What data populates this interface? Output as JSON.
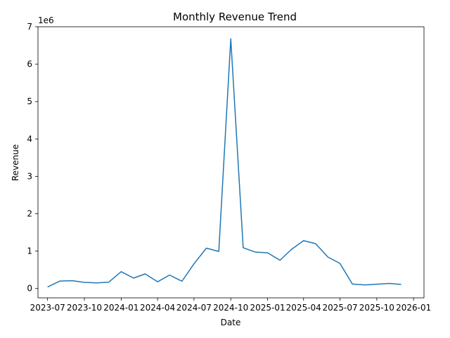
{
  "chart_data": {
    "type": "line",
    "title": "Monthly Revenue Trend",
    "xlabel": "Date",
    "ylabel": "Revenue",
    "y_offset_label": "1e6",
    "y_scale": 1000000,
    "x_tick_labels": [
      "2023-07",
      "2023-10",
      "2024-01",
      "2024-04",
      "2024-07",
      "2024-10",
      "2025-01",
      "2025-04",
      "2025-07",
      "2025-10",
      "2026-01"
    ],
    "y_tick_labels": [
      "0",
      "1",
      "2",
      "3",
      "4",
      "5",
      "6",
      "7"
    ],
    "ylim": [
      -250000,
      7000000
    ],
    "xlim": [
      "2023-06-07",
      "2026-01-27"
    ],
    "grid": false,
    "line_color": "#1f77b4",
    "series": [
      {
        "x": [
          "2023-07-01",
          "2023-08-01",
          "2023-09-01",
          "2023-10-01",
          "2023-11-01",
          "2023-12-01",
          "2024-01-01",
          "2024-02-01",
          "2024-03-01",
          "2024-04-01",
          "2024-05-01",
          "2024-06-01",
          "2024-07-01",
          "2024-08-01",
          "2024-09-01",
          "2024-10-01",
          "2024-11-01",
          "2024-12-01",
          "2025-01-01",
          "2025-02-01",
          "2025-03-01",
          "2025-04-01",
          "2025-05-01",
          "2025-06-01",
          "2025-07-01",
          "2025-08-01",
          "2025-09-01",
          "2025-10-01",
          "2025-11-01",
          "2025-12-01"
        ],
        "values": [
          40000,
          200000,
          210000,
          165000,
          150000,
          170000,
          450000,
          280000,
          390000,
          180000,
          360000,
          195000,
          660000,
          1080000,
          990000,
          6680000,
          1090000,
          975000,
          955000,
          755000,
          1040000,
          1280000,
          1200000,
          840000,
          670000,
          120000,
          95000,
          115000,
          135000,
          110000
        ]
      }
    ]
  }
}
